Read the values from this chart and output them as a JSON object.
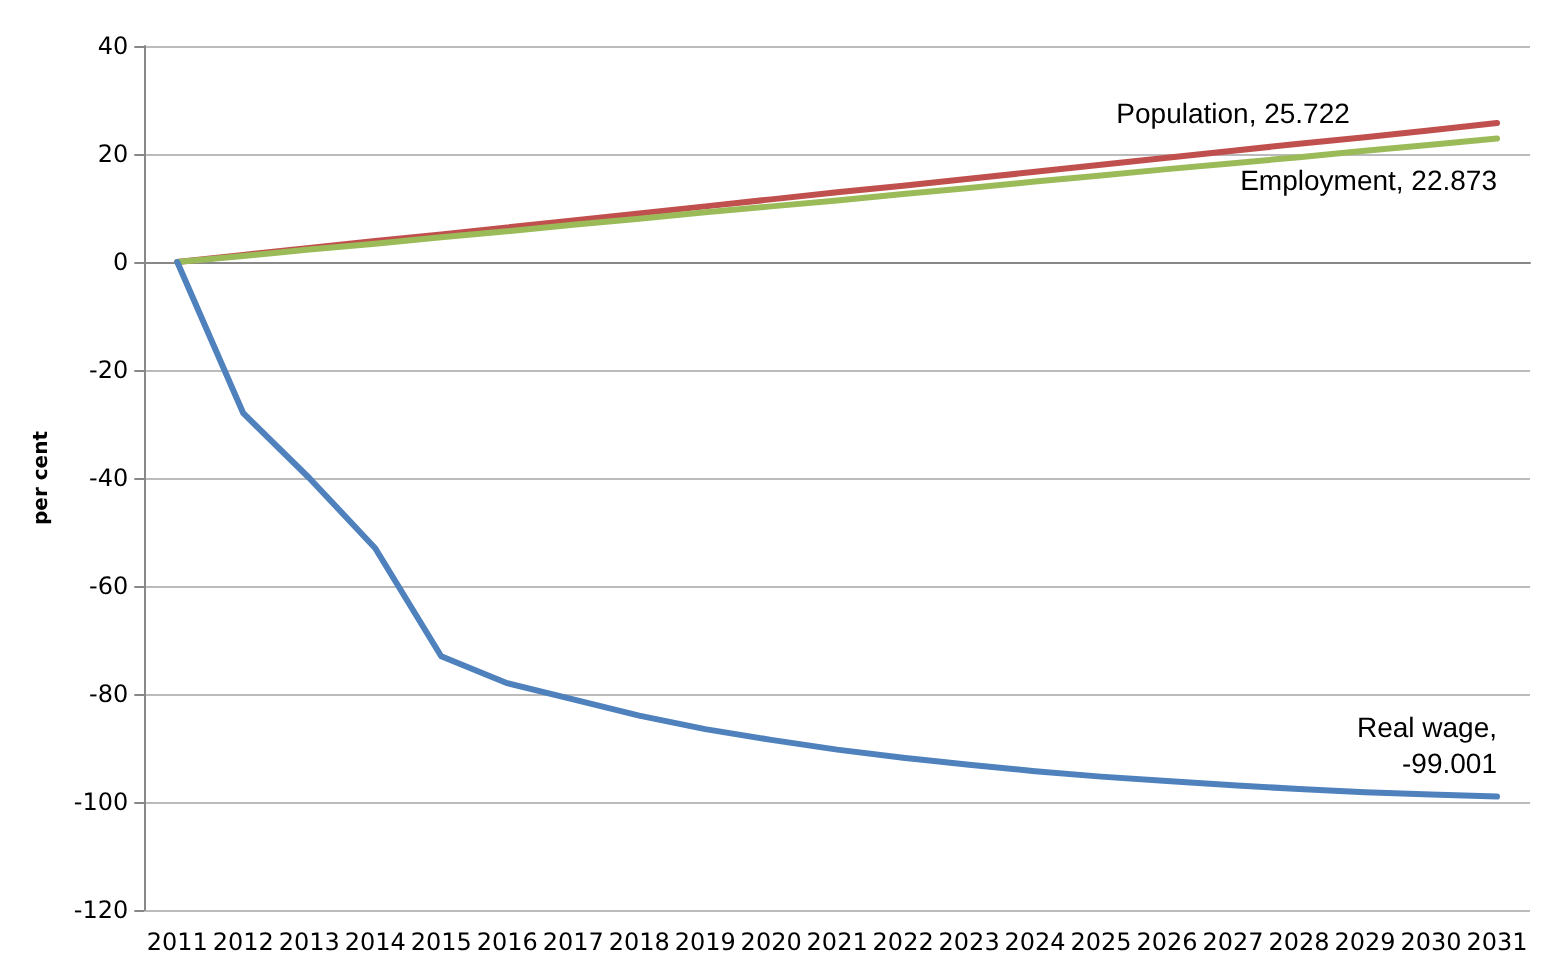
{
  "chart_data": {
    "type": "line",
    "ylabel": "per cent",
    "categories": [
      "2011",
      "2012",
      "2013",
      "2014",
      "2015",
      "2016",
      "2017",
      "2018",
      "2019",
      "2020",
      "2021",
      "2022",
      "2023",
      "2024",
      "2025",
      "2026",
      "2027",
      "2028",
      "2029",
      "2030",
      "2031"
    ],
    "series": [
      {
        "color": "#c0504d",
        "values": [
          0,
          1.3,
          2.6,
          3.9,
          5.1,
          6.4,
          7.7,
          9.0,
          10.3,
          11.6,
          12.9,
          14.1,
          15.4,
          16.7,
          18.0,
          19.3,
          20.6,
          21.9,
          23.1,
          24.4,
          25.722
        ]
      },
      {
        "color": "#9bbb59",
        "values": [
          0,
          1.1,
          2.3,
          3.4,
          4.6,
          5.7,
          6.9,
          8.0,
          9.2,
          10.3,
          11.4,
          12.6,
          13.7,
          14.9,
          16.0,
          17.2,
          18.3,
          19.4,
          20.6,
          21.7,
          22.873
        ]
      },
      {
        "color": "#4f81bd",
        "values": [
          0,
          -28,
          -40,
          -53,
          -73,
          -78,
          -81,
          -84,
          -86.5,
          -88.5,
          -90.3,
          -91.8,
          -93.1,
          -94.3,
          -95.3,
          -96.1,
          -96.9,
          -97.6,
          -98.2,
          -98.6,
          -99.001
        ]
      }
    ],
    "annotations": [
      {
        "text": "Population, 25.722",
        "x": "2027",
        "y": 20.6
      },
      {
        "text": "Employment, 22.873",
        "x": "2031",
        "y": 22.873
      },
      {
        "text": "Real wage,\n-99.001",
        "x": "2031",
        "y": -99.001
      }
    ],
    "ylim": [
      -120,
      40
    ],
    "yticks": [
      -120,
      -100,
      -80,
      -60,
      -40,
      -20,
      0,
      20,
      40
    ],
    "grid": "y",
    "marker": "none",
    "line_style": "solid"
  }
}
